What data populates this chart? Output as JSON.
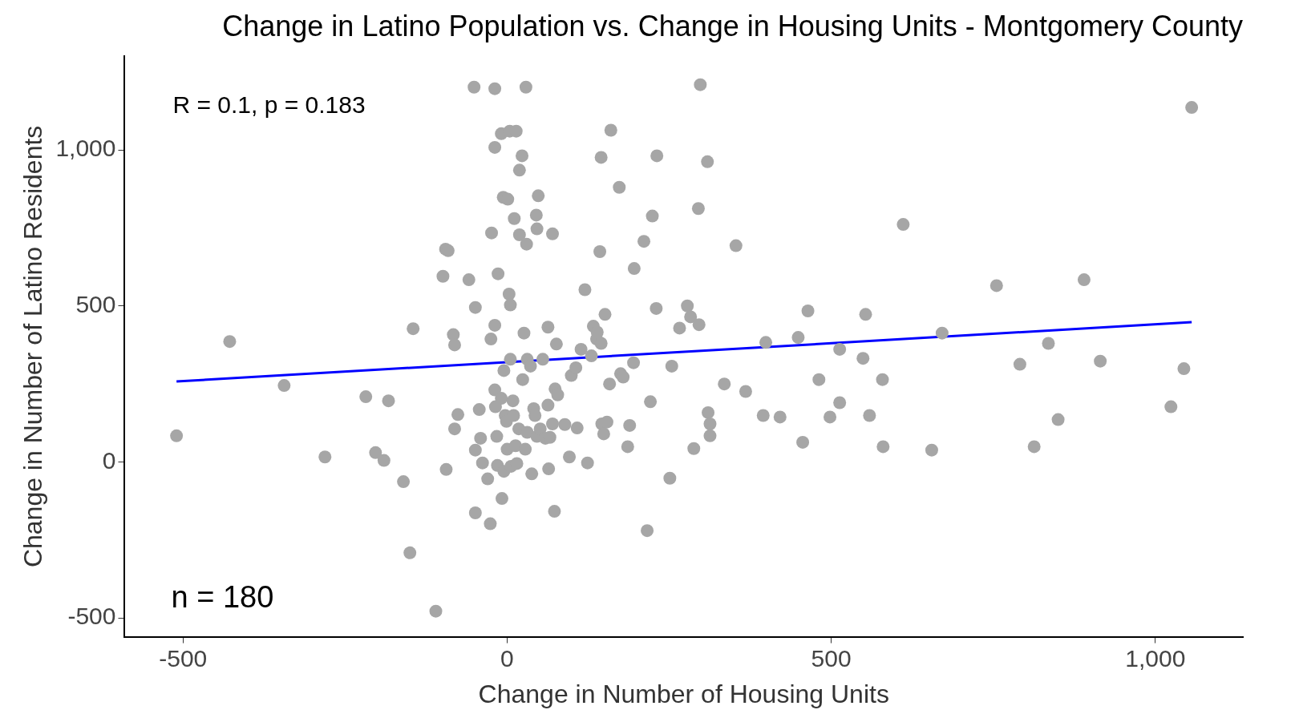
{
  "chart_data": {
    "type": "scatter",
    "title": "Change in Latino Population vs. Change in Housing Units - Montgomery County",
    "xlabel": "Change in Number of Housing Units",
    "ylabel": "Change in Number of Latino Residents",
    "annotations": [
      "R = 0.1, p = 0.183",
      "n = 180"
    ],
    "marker": "circle",
    "xlim": [
      -590,
      1135
    ],
    "ylim": [
      -560,
      1300
    ],
    "xticks": [
      {
        "value": -500,
        "label": "-500"
      },
      0,
      500,
      {
        "value": 1000,
        "label": "1,000"
      }
    ],
    "yticks": [
      {
        "value": -500,
        "label": "-500"
      },
      0,
      500,
      {
        "value": 1000,
        "label": "1,000"
      }
    ],
    "series": [
      {
        "color": "#a6a6a6",
        "x": [
          -510,
          -428,
          -344,
          -281,
          -218,
          -203,
          -190,
          -183,
          -160,
          -150,
          -145,
          -110,
          -99,
          -95,
          -91,
          -94,
          -83,
          -81,
          -81,
          -76,
          -59,
          -51,
          -49,
          -49,
          -49,
          -43,
          -41,
          -38,
          -30,
          -26,
          -25,
          -24,
          -19,
          -19,
          -19,
          -19,
          -18,
          -16,
          -15,
          -14,
          -9,
          -9,
          -8,
          -6,
          -5,
          -5,
          -3,
          -1,
          0,
          1,
          3,
          4,
          5,
          5,
          6,
          9,
          10,
          11,
          13,
          14,
          15,
          18,
          19,
          19,
          23,
          24,
          26,
          28,
          29,
          30,
          31,
          31,
          36,
          38,
          41,
          43,
          45,
          46,
          46,
          48,
          51,
          55,
          59,
          63,
          63,
          64,
          66,
          70,
          70,
          73,
          74,
          76,
          78,
          89,
          96,
          99,
          106,
          108,
          114,
          120,
          124,
          130,
          133,
          138,
          139,
          143,
          145,
          145,
          146,
          149,
          151,
          154,
          158,
          160,
          173,
          175,
          179,
          186,
          189,
          195,
          196,
          211,
          216,
          221,
          224,
          230,
          231,
          251,
          254,
          266,
          278,
          283,
          288,
          295,
          296,
          298,
          309,
          310,
          313,
          313,
          335,
          353,
          368,
          395,
          399,
          421,
          449,
          456,
          464,
          481,
          498,
          513,
          513,
          549,
          553,
          559,
          579,
          580,
          611,
          655,
          671,
          755,
          791,
          813,
          835,
          850,
          890,
          915,
          1024,
          1044,
          1056
        ],
        "values": [
          84,
          386,
          245,
          16,
          209,
          30,
          5,
          196,
          -63,
          -291,
          427,
          -478,
          595,
          682,
          677,
          -24,
          408,
          375,
          106,
          152,
          584,
          1201,
          495,
          38,
          -163,
          168,
          76,
          -3,
          -54,
          -198,
          394,
          734,
          1196,
          1008,
          438,
          231,
          177,
          82,
          -11,
          603,
          1052,
          204,
          -117,
          848,
          -30,
          293,
          149,
          130,
          41,
          842,
          538,
          1060,
          329,
          503,
          -14,
          196,
          149,
          780,
          52,
          1060,
          -5,
          106,
          935,
          728,
          981,
          264,
          413,
          41,
          1201,
          698,
          329,
          95,
          307,
          -38,
          171,
          149,
          791,
          82,
          747,
          853,
          106,
          329,
          76,
          432,
          182,
          -22,
          79,
          731,
          122,
          -158,
          234,
          378,
          215,
          120,
          16,
          277,
          302,
          109,
          361,
          552,
          -3,
          340,
          435,
          394,
          416,
          674,
          976,
          380,
          122,
          90,
          473,
          128,
          250,
          1063,
          880,
          283,
          272,
          49,
          117,
          318,
          620,
          707,
          -220,
          193,
          788,
          492,
          981,
          -52,
          307,
          429,
          500,
          465,
          43,
          812,
          440,
          1209,
          962,
          158,
          122,
          84,
          250,
          693,
          226,
          149,
          383,
          144,
          399,
          63,
          484,
          264,
          144,
          361,
          190,
          332,
          473,
          149,
          264,
          49,
          761,
          38,
          413,
          565,
          313,
          49,
          380,
          136,
          584,
          323,
          177,
          299,
          1136
        ]
      },
      {
        "type": "line",
        "marker": "none",
        "color": "#0000ff",
        "x": [
          -510,
          1056
        ],
        "values": [
          258,
          448
        ]
      }
    ]
  }
}
